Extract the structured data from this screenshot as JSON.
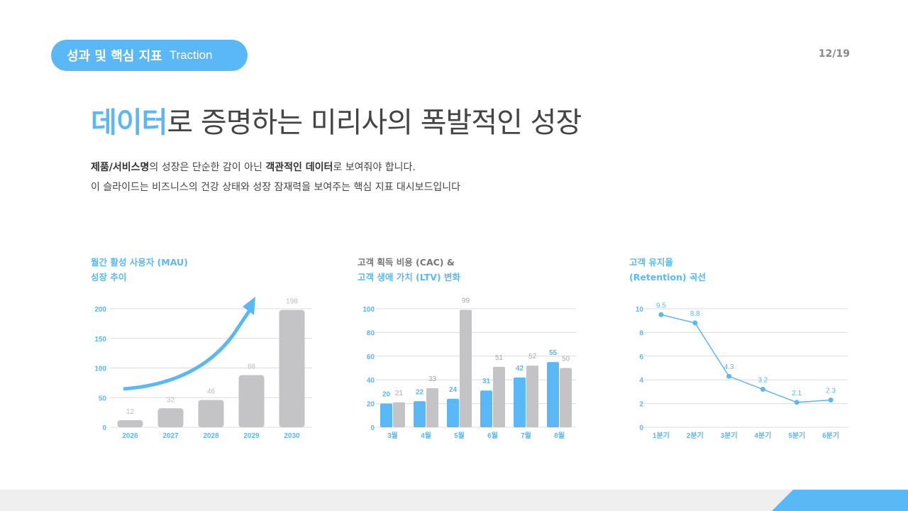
{
  "header": {
    "section_ko": "성과 및 핵심 지표",
    "section_en": "Traction",
    "page": "12/19"
  },
  "title": {
    "highlight": "데이터",
    "rest": "로 증명하는 미리사의 폭발적인 성장"
  },
  "desc": {
    "l1a": "제품/서비스명",
    "l1b": "의 성장은 단순한 감이 아닌 ",
    "l1c": "객관적인 데이터",
    "l1d": "로 보여줘야 합니다.",
    "l2": "이 슬라이드는 비즈니스의 건강 상태와 성장 잠재력을 보여주는 핵심 지표 대시보드입니다"
  },
  "colors": {
    "accent": "#5bb8f7",
    "gray": "#c4c3c6"
  },
  "chart_data": [
    {
      "type": "bar",
      "title": [
        "월간 활성 사용자 (MAU)",
        "성장 추이"
      ],
      "categories": [
        "2026",
        "2027",
        "2028",
        "2029",
        "2030"
      ],
      "values": [
        12,
        32,
        46,
        88,
        198
      ],
      "yticks": [
        0,
        50,
        100,
        150,
        200
      ],
      "ylim": [
        0,
        200
      ],
      "grid": true
    },
    {
      "type": "bar",
      "title": [
        "고객 획득 비용 (CAC) &",
        "고객 생애 가치 (LTV) 변화"
      ],
      "categories": [
        "3월",
        "4월",
        "5월",
        "6월",
        "7월",
        "8월"
      ],
      "series": [
        {
          "name": "LTV",
          "values": [
            20,
            22,
            24,
            31,
            42,
            55
          ]
        },
        {
          "name": "CAC",
          "values": [
            21,
            33,
            99,
            51,
            52,
            50
          ]
        }
      ],
      "yticks": [
        0,
        20,
        40,
        60,
        80,
        100
      ],
      "ylim": [
        0,
        100
      ],
      "grid": true
    },
    {
      "type": "line",
      "title": [
        "고객 유지율",
        "(Retention) 곡선"
      ],
      "categories": [
        "1분기",
        "2분기",
        "3분기",
        "4분기",
        "5분기",
        "6분기"
      ],
      "values": [
        9.5,
        8.8,
        4.3,
        3.2,
        2.1,
        2.3
      ],
      "yticks": [
        0,
        2,
        4,
        6,
        8,
        10
      ],
      "ylim": [
        0,
        10
      ],
      "grid": true
    }
  ]
}
